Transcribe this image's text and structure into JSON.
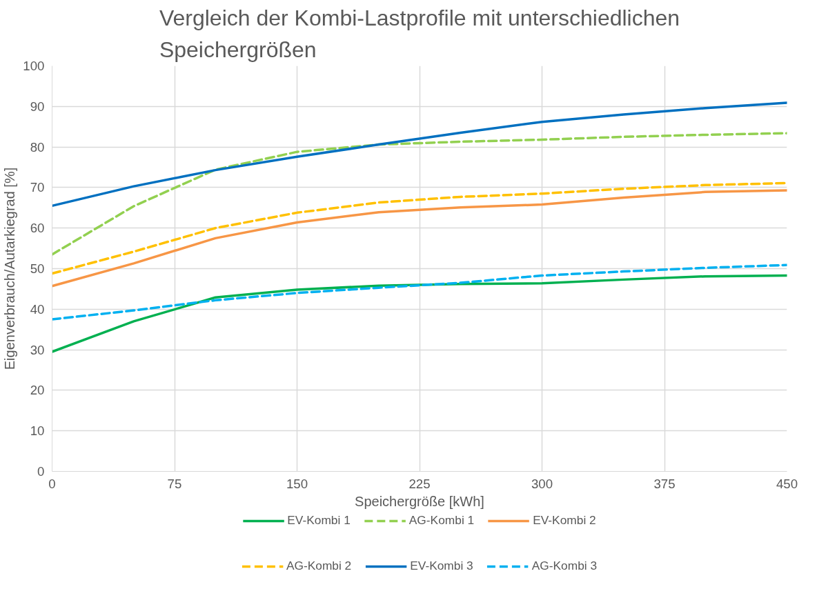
{
  "chart_data": {
    "type": "line",
    "title": "Vergleich der Kombi-Lastprofile mit unterschiedlichen Speichergrößen",
    "xlabel": "Speichergröße [kWh]",
    "ylabel": "Eigenverbrauch/Autarkiegrad [%]",
    "x": [
      0,
      50,
      100,
      150,
      200,
      250,
      300,
      350,
      400,
      450
    ],
    "xlim": [
      0,
      450
    ],
    "xticks": [
      0,
      75,
      150,
      225,
      300,
      375,
      450
    ],
    "ylim": [
      0,
      100
    ],
    "yticks": [
      0,
      10,
      20,
      30,
      40,
      50,
      60,
      70,
      80,
      90,
      100
    ],
    "grid": true,
    "legend": "bottom",
    "marker": "none",
    "series": [
      {
        "name": "EV-Kombi 1",
        "color": "#00b050",
        "line_style": "solid",
        "values": [
          29.5,
          37,
          42.9,
          44.8,
          45.8,
          46.2,
          46.4,
          47.3,
          48.1,
          48.3
        ]
      },
      {
        "name": "AG-Kombi 1",
        "color": "#92d050",
        "line_style": "dashed",
        "values": [
          53.5,
          65.4,
          74.4,
          78.8,
          80.6,
          81.3,
          81.8,
          82.5,
          83,
          83.4
        ]
      },
      {
        "name": "EV-Kombi 2",
        "color": "#f79646",
        "line_style": "solid",
        "values": [
          45.7,
          51.3,
          57.5,
          61.4,
          63.9,
          65.1,
          65.8,
          67.5,
          68.9,
          69.3
        ]
      },
      {
        "name": "AG-Kombi 2",
        "color": "#ffc000",
        "line_style": "dashed",
        "values": [
          48.8,
          54.2,
          60,
          63.8,
          66.3,
          67.7,
          68.5,
          69.7,
          70.6,
          71.1
        ]
      },
      {
        "name": "EV-Kombi 3",
        "color": "#0070c0",
        "line_style": "solid",
        "values": [
          65.5,
          70.3,
          74.3,
          77.6,
          80.6,
          83.5,
          86.2,
          88,
          89.6,
          90.9
        ]
      },
      {
        "name": "AG-Kombi 3",
        "color": "#00b0f0",
        "line_style": "dashed",
        "values": [
          37.5,
          39.7,
          42.2,
          44,
          45.3,
          46.5,
          48.3,
          49.3,
          50.2,
          50.9
        ]
      }
    ]
  }
}
